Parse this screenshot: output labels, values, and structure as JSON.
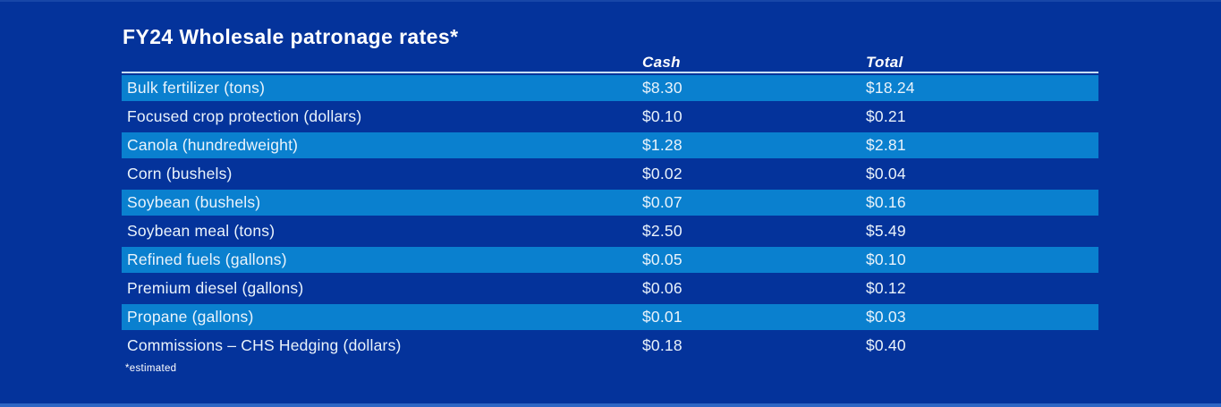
{
  "title": "FY24 Wholesale patronage rates*",
  "footnote": "*estimated",
  "colors": {
    "background": "#04339B",
    "row_highlight": "#0A80CF",
    "header_underline": "#C9DFF5",
    "text": "#FFFFFF",
    "bottom_accent": "#2E66C4"
  },
  "table": {
    "columns": {
      "cash": "Cash",
      "total": "Total"
    },
    "rows": [
      {
        "label": "Bulk fertilizer (tons)",
        "cash": "$8.30",
        "total": "$18.24"
      },
      {
        "label": "Focused crop protection (dollars)",
        "cash": "$0.10",
        "total": "$0.21"
      },
      {
        "label": "Canola (hundredweight)",
        "cash": "$1.28",
        "total": "$2.81"
      },
      {
        "label": "Corn (bushels)",
        "cash": "$0.02",
        "total": "$0.04"
      },
      {
        "label": "Soybean (bushels)",
        "cash": "$0.07",
        "total": "$0.16"
      },
      {
        "label": "Soybean meal (tons)",
        "cash": "$2.50",
        "total": "$5.49"
      },
      {
        "label": "Refined fuels (gallons)",
        "cash": "$0.05",
        "total": "$0.10"
      },
      {
        "label": "Premium diesel (gallons)",
        "cash": "$0.06",
        "total": "$0.12"
      },
      {
        "label": "Propane (gallons)",
        "cash": "$0.01",
        "total": "$0.03"
      },
      {
        "label": "Commissions – CHS Hedging (dollars)",
        "cash": "$0.18",
        "total": "$0.40"
      }
    ]
  },
  "chart_data": {
    "type": "table",
    "title": "FY24 Wholesale patronage rates*",
    "footnote": "*estimated",
    "categories": [
      "Bulk fertilizer (tons)",
      "Focused crop protection (dollars)",
      "Canola (hundredweight)",
      "Corn (bushels)",
      "Soybean (bushels)",
      "Soybean meal (tons)",
      "Refined fuels (gallons)",
      "Premium diesel (gallons)",
      "Propane (gallons)",
      "Commissions – CHS Hedging (dollars)"
    ],
    "series": [
      {
        "name": "Cash",
        "values": [
          8.3,
          0.1,
          1.28,
          0.02,
          0.07,
          2.5,
          0.05,
          0.06,
          0.01,
          0.18
        ]
      },
      {
        "name": "Total",
        "values": [
          18.24,
          0.21,
          2.81,
          0.04,
          0.16,
          5.49,
          0.1,
          0.12,
          0.03,
          0.4
        ]
      }
    ],
    "units": "USD per unit",
    "layout": {
      "striped_rows": "odd rows highlighted",
      "legend_position": "column headers"
    }
  }
}
